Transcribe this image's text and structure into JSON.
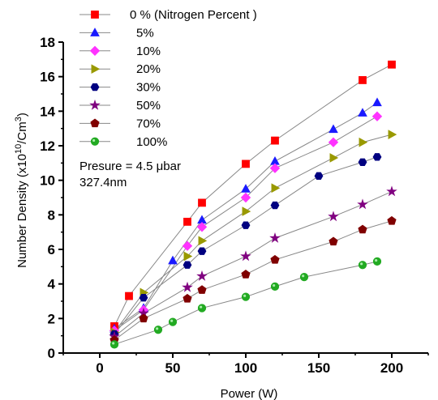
{
  "chart_data": {
    "type": "scatter",
    "xlabel": "Power (W)",
    "ylabel_main": "Number Density (x10",
    "ylabel_sup": "10",
    "ylabel_mid": "/Cm",
    "ylabel_sup2": "3",
    "ylabel_end": ")",
    "xlim": [
      -25,
      225
    ],
    "ylim": [
      0,
      18
    ],
    "xticks": [
      0,
      50,
      100,
      150,
      200
    ],
    "yticks": [
      0,
      2,
      4,
      6,
      8,
      10,
      12,
      14,
      16,
      18
    ],
    "annotations": [
      "Presure = 4.5 μbar",
      "327.4nm"
    ],
    "series": [
      {
        "name": "0 % (Nitrogen Percent )",
        "marker": "square",
        "color": "#ff0000",
        "x": [
          10,
          20,
          60,
          70,
          100,
          120,
          180,
          200
        ],
        "y": [
          1.55,
          3.3,
          7.6,
          8.7,
          10.95,
          12.3,
          15.8,
          16.7
        ]
      },
      {
        "name": "5%",
        "marker": "triangle-up",
        "color": "#1a1aff",
        "x": [
          10,
          30,
          50,
          70,
          100,
          120,
          160,
          180,
          190
        ],
        "y": [
          1.4,
          2.6,
          5.35,
          7.7,
          9.5,
          11.1,
          12.95,
          13.9,
          14.5
        ]
      },
      {
        "name": "10%",
        "marker": "diamond",
        "color": "#ff33ff",
        "x": [
          10,
          30,
          60,
          70,
          100,
          120,
          160,
          190
        ],
        "y": [
          1.3,
          2.5,
          6.2,
          7.3,
          9.0,
          10.7,
          12.2,
          13.7
        ]
      },
      {
        "name": "20%",
        "marker": "triangle-right",
        "color": "#999900",
        "x": [
          10,
          30,
          60,
          70,
          100,
          120,
          160,
          180,
          200
        ],
        "y": [
          1.2,
          3.5,
          5.6,
          6.5,
          8.2,
          9.55,
          11.3,
          12.2,
          12.65
        ]
      },
      {
        "name": "30%",
        "marker": "hexagon",
        "color": "#000080",
        "x": [
          10,
          30,
          60,
          70,
          100,
          120,
          150,
          180,
          190
        ],
        "y": [
          1.1,
          3.2,
          5.1,
          5.9,
          7.4,
          8.55,
          10.25,
          11.05,
          11.35
        ]
      },
      {
        "name": "50%",
        "marker": "star",
        "color": "#800080",
        "x": [
          10,
          30,
          60,
          70,
          100,
          120,
          160,
          180,
          200
        ],
        "y": [
          0.95,
          2.3,
          3.8,
          4.45,
          5.6,
          6.65,
          7.9,
          8.6,
          9.35
        ]
      },
      {
        "name": "70%",
        "marker": "pentagon",
        "color": "#800000",
        "x": [
          10,
          30,
          60,
          70,
          100,
          120,
          160,
          180,
          200
        ],
        "y": [
          0.75,
          2.0,
          3.15,
          3.65,
          4.55,
          5.4,
          6.45,
          7.15,
          7.65
        ]
      },
      {
        "name": "100%",
        "marker": "sphere",
        "color": "#22aa22",
        "x": [
          10,
          40,
          50,
          70,
          100,
          120,
          140,
          180,
          190
        ],
        "y": [
          0.5,
          1.35,
          1.8,
          2.6,
          3.25,
          3.85,
          4.4,
          5.1,
          5.3
        ]
      }
    ]
  }
}
